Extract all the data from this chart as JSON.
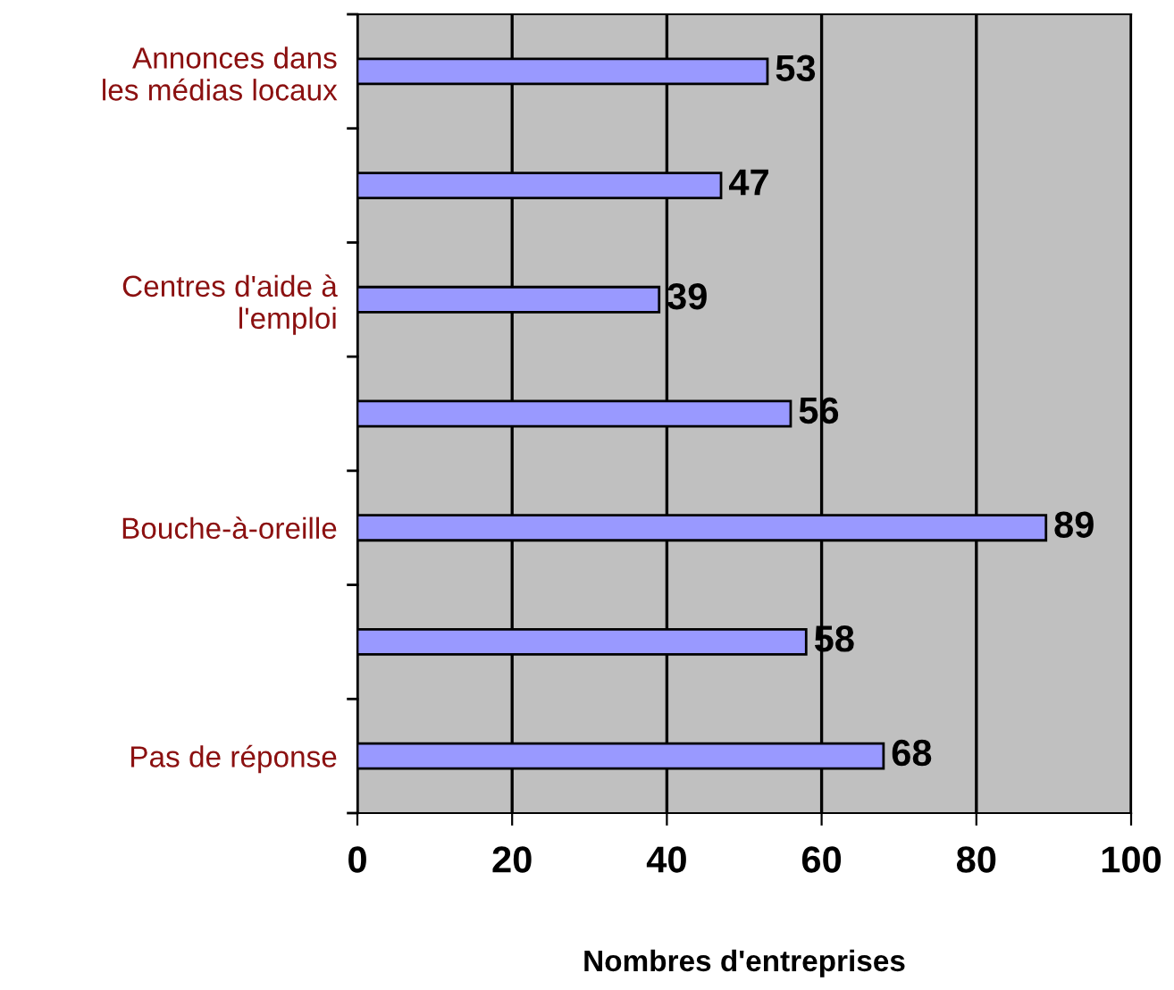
{
  "chart_data": {
    "type": "bar",
    "orientation": "horizontal",
    "xlabel": "Nombres d'entreprises",
    "categories": [
      "Annonces dans\nles médias locaux",
      null,
      "Centres d'aide à\nl'emploi",
      null,
      "Bouche-à-oreille",
      null,
      "Pas de réponse"
    ],
    "values": [
      53,
      47,
      39,
      56,
      89,
      58,
      68
    ],
    "color": "#9999ff",
    "xlim": [
      0,
      100
    ],
    "xticks": [
      0,
      20,
      40,
      60,
      80,
      100
    ],
    "grid": "x",
    "data_labels": true
  }
}
